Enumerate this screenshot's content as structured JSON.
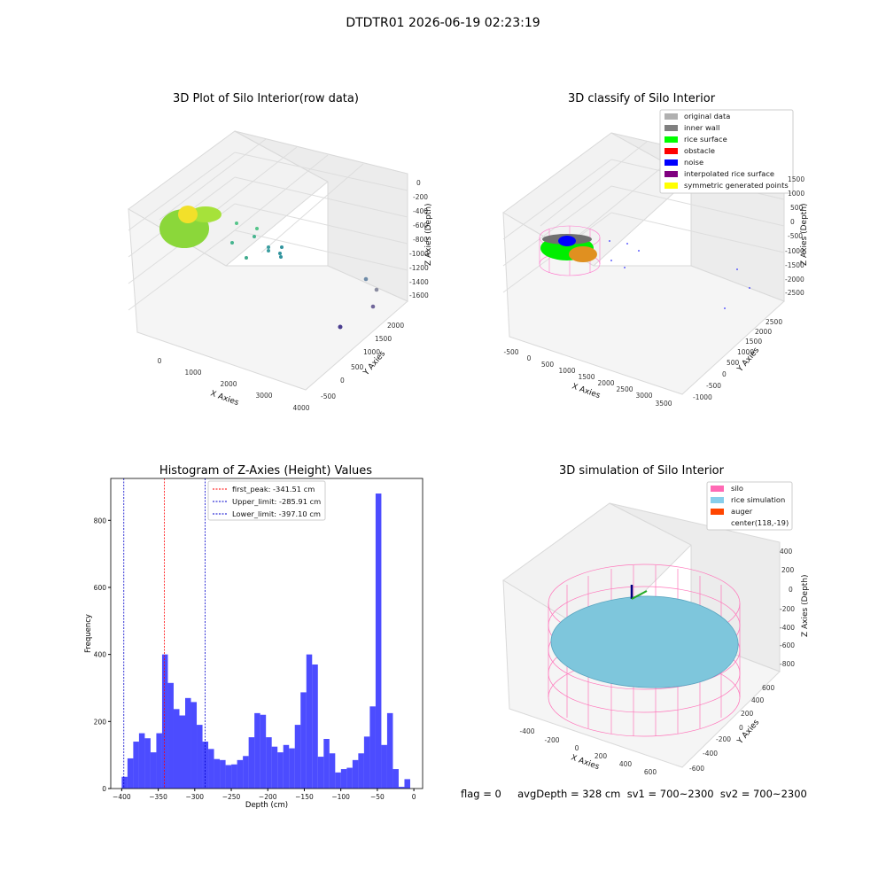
{
  "suptitle": "DTDTR01 2026-06-19 02:23:19",
  "panel1": {
    "title": "3D Plot of Silo Interior(row data)",
    "x_ticks": [
      "0",
      "1000",
      "2000",
      "3000",
      "4000"
    ],
    "y_ticks": [
      "-500",
      "0",
      "500",
      "1000",
      "1500",
      "2000"
    ],
    "z_ticks": [
      "0",
      "-200",
      "-400",
      "-600",
      "-800",
      "-1000",
      "-1200",
      "-1400",
      "-1600"
    ],
    "xlabel": "X Axies",
    "ylabel": "Y Axies",
    "zlabel": "Z Axies (Depth)"
  },
  "panel2": {
    "title": "3D classify of Silo Interior",
    "x_ticks": [
      "-500",
      "0",
      "500",
      "1000",
      "1500",
      "2000",
      "2500",
      "3000",
      "3500"
    ],
    "y_ticks": [
      "-1000",
      "-500",
      "0",
      "500",
      "1000",
      "1500",
      "2000",
      "2500"
    ],
    "z_ticks": [
      "1500",
      "1000",
      "500",
      "0",
      "-500",
      "-1000",
      "-1500",
      "-2000",
      "-2500"
    ],
    "xlabel": "X Axies",
    "ylabel": "Y Axies",
    "zlabel": "Z Axies (Depth)",
    "legend": [
      {
        "label": "original data",
        "color": "#b0b0b0"
      },
      {
        "label": "inner wall",
        "color": "#808080"
      },
      {
        "label": "rice surface",
        "color": "#00ff00"
      },
      {
        "label": "obstacle",
        "color": "#ff0000"
      },
      {
        "label": "noise",
        "color": "#0000ff"
      },
      {
        "label": "interpolated rice surface",
        "color": "#800080"
      },
      {
        "label": "symmetric generated points",
        "color": "#ffff00"
      }
    ]
  },
  "panel4": {
    "title": "3D simulation of Silo Interior",
    "x_ticks": [
      "-400",
      "-200",
      "0",
      "200",
      "400",
      "600"
    ],
    "y_ticks": [
      "-600",
      "-400",
      "-200",
      "0",
      "200",
      "400",
      "600"
    ],
    "z_ticks": [
      "400",
      "200",
      "0",
      "-200",
      "-400",
      "-600",
      "-800"
    ],
    "xlabel": "X Axies",
    "ylabel": "Y Axies",
    "zlabel": "Z Axies (Depth)",
    "legend": [
      {
        "label": "silo",
        "color": "#ff69b4"
      },
      {
        "label": "rice simulation",
        "color": "#87ceeb"
      },
      {
        "label": "auger",
        "color": "#ff4500"
      },
      {
        "label": "center(118,-19)",
        "color": ""
      }
    ]
  },
  "status": "flag = 0     avgDepth = 328 cm  sv1 = 700~2300  sv2 = 700~2300",
  "chart_data": [
    {
      "type": "histogram",
      "title": "Histogram of Z-Axies (Height) Values",
      "xlabel": "Depth (cm)",
      "ylabel": "Frequency",
      "xlim": [
        -415,
        12
      ],
      "ylim": [
        0,
        925
      ],
      "x_ticks": [
        -400,
        -350,
        -300,
        -250,
        -200,
        -150,
        -100,
        -50,
        0
      ],
      "y_ticks": [
        0,
        200,
        400,
        600,
        800
      ],
      "bar_color": "#0000ff",
      "bin_start": -400,
      "bin_width": 7.9,
      "counts": [
        35,
        90,
        140,
        165,
        150,
        108,
        165,
        400,
        315,
        237,
        218,
        270,
        258,
        190,
        140,
        118,
        88,
        85,
        70,
        72,
        85,
        97,
        153,
        225,
        220,
        153,
        125,
        108,
        130,
        120,
        190,
        287,
        400,
        370,
        95,
        148,
        105,
        48,
        58,
        62,
        85,
        105,
        155,
        245,
        880,
        130,
        225,
        58,
        5,
        28
      ],
      "lines": [
        {
          "label": "first_peak: -341.51 cm",
          "x": -341.51,
          "color": "#ff0000"
        },
        {
          "label": "Upper_limit: -285.91 cm",
          "x": -285.91,
          "color": "#0000cc"
        },
        {
          "label": "Lower_limit: -397.10 cm",
          "x": -397.1,
          "color": "#0000cc"
        }
      ]
    }
  ]
}
